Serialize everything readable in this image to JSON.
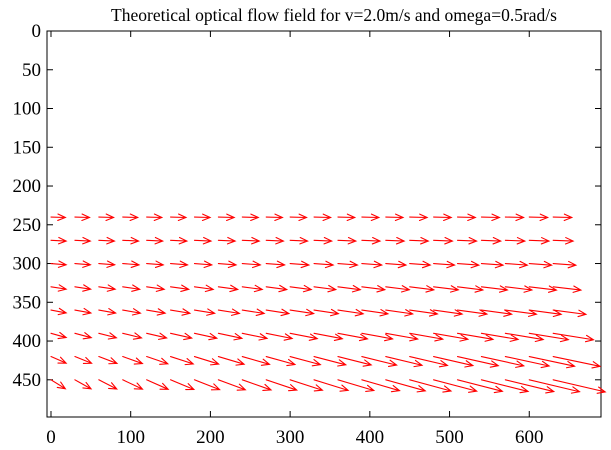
{
  "chart_data": {
    "type": "quiver",
    "title": "Theoretical optical flow field for v=2.0m/s and omega=0.5rad/s",
    "xlabel": "",
    "ylabel": "",
    "xlim": [
      -5,
      690
    ],
    "ylim": [
      0,
      498
    ],
    "y_inverted": true,
    "grid": false,
    "legend": "none",
    "arrow_color": "#ff0000",
    "x_ticks": [
      0,
      100,
      200,
      300,
      400,
      500,
      600
    ],
    "y_ticks": [
      0,
      50,
      100,
      150,
      200,
      250,
      300,
      350,
      400,
      450
    ],
    "x_tick_labels": [
      "0",
      "100",
      "200",
      "300",
      "400",
      "500",
      "600"
    ],
    "y_tick_labels": [
      "0",
      "50",
      "100",
      "150",
      "200",
      "250",
      "300",
      "350",
      "400",
      "450"
    ],
    "x_positions": [
      0,
      30,
      60,
      90,
      120,
      150,
      180,
      210,
      240,
      270,
      300,
      330,
      360,
      390,
      420,
      450,
      480,
      510,
      540,
      570,
      600,
      630
    ],
    "rows": [
      {
        "y": 240,
        "u_per_x": 0.0085,
        "u_base": 18,
        "v_base": 0.6,
        "v_per_x": 0.0
      },
      {
        "y": 270,
        "u_per_x": 0.0095,
        "u_base": 19,
        "v_base": 1.0,
        "v_per_x": 0.0
      },
      {
        "y": 300,
        "u_per_x": 0.015,
        "u_base": 19,
        "v_base": 1.6,
        "v_per_x": 0.0008
      },
      {
        "y": 330,
        "u_per_x": 0.025,
        "u_base": 19,
        "v_base": 3.0,
        "v_per_x": 0.002
      },
      {
        "y": 360,
        "u_per_x": 0.035,
        "u_base": 19,
        "v_base": 3.7,
        "v_per_x": 0.003
      },
      {
        "y": 390,
        "u_per_x": 0.05,
        "u_base": 19,
        "v_base": 5.5,
        "v_per_x": 0.0045
      },
      {
        "y": 420,
        "u_per_x": 0.063,
        "u_base": 19,
        "v_base": 8.5,
        "v_per_x": 0.0065
      },
      {
        "y": 450,
        "u_per_x": 0.075,
        "u_base": 18,
        "v_base": 11.5,
        "v_per_x": 0.0065
      }
    ]
  }
}
